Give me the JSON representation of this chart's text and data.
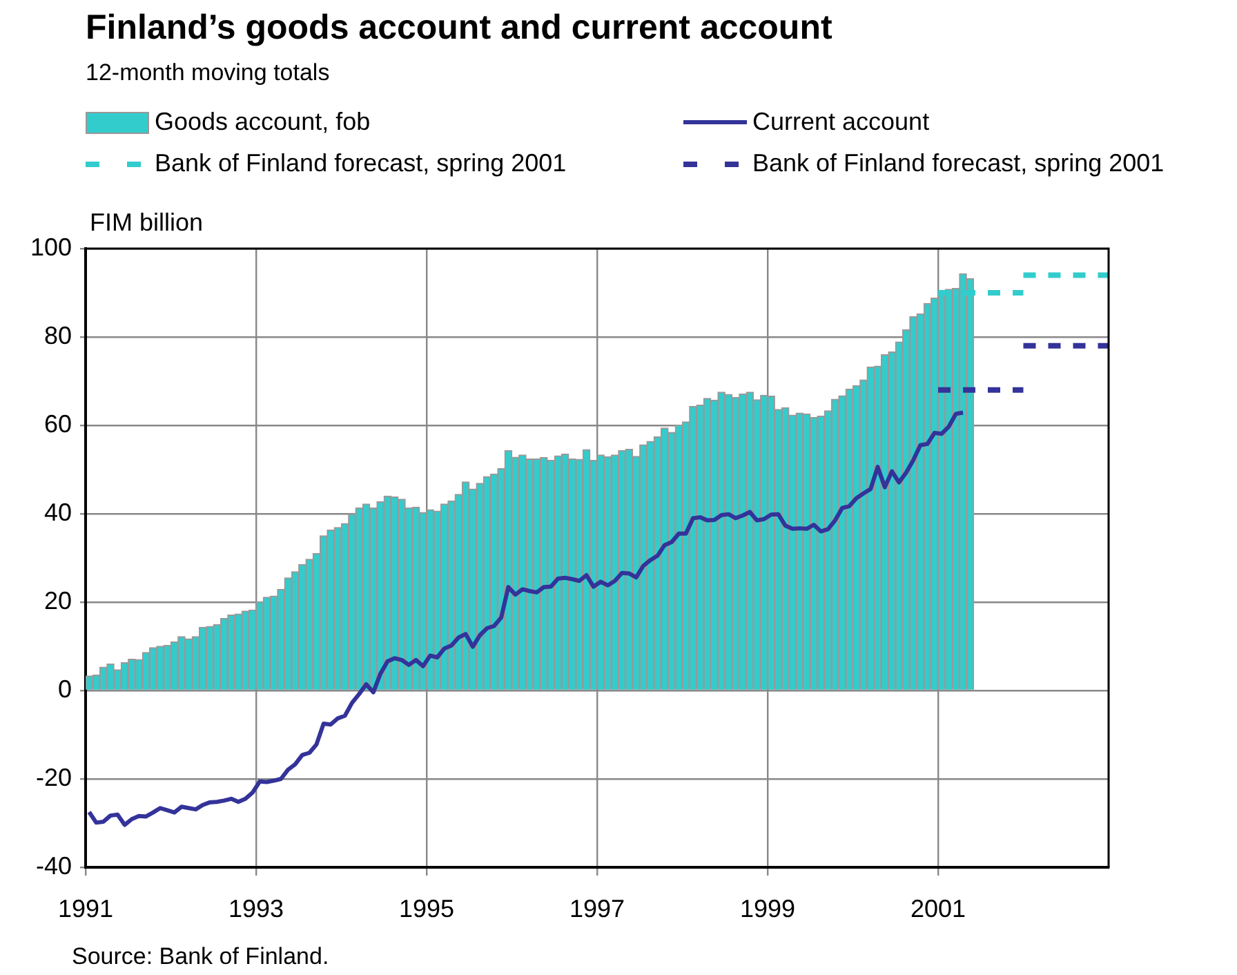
{
  "chart_data": {
    "type": "bar",
    "title": "Finland’s goods account and current account",
    "subtitle": "12-month moving totals",
    "ylabel": "FIM billion",
    "annotations": [
      "Source: Bank of Finland."
    ],
    "x": [
      "1991-01",
      "1991-02",
      "1991-03",
      "1991-04",
      "1991-05",
      "1991-06",
      "1991-07",
      "1991-08",
      "1991-09",
      "1991-10",
      "1991-11",
      "1991-12",
      "1992-01",
      "1992-02",
      "1992-03",
      "1992-04",
      "1992-05",
      "1992-06",
      "1992-07",
      "1992-08",
      "1992-09",
      "1992-10",
      "1992-11",
      "1992-12",
      "1993-01",
      "1993-02",
      "1993-03",
      "1993-04",
      "1993-05",
      "1993-06",
      "1993-07",
      "1993-08",
      "1993-09",
      "1993-10",
      "1993-11",
      "1993-12",
      "1994-01",
      "1994-02",
      "1994-03",
      "1994-04",
      "1994-05",
      "1994-06",
      "1994-07",
      "1994-08",
      "1994-09",
      "1994-10",
      "1994-11",
      "1994-12",
      "1995-01",
      "1995-02",
      "1995-03",
      "1995-04",
      "1995-05",
      "1995-06",
      "1995-07",
      "1995-08",
      "1995-09",
      "1995-10",
      "1995-11",
      "1995-12",
      "1996-01",
      "1996-02",
      "1996-03",
      "1996-04",
      "1996-05",
      "1996-06",
      "1996-07",
      "1996-08",
      "1996-09",
      "1996-10",
      "1996-11",
      "1996-12",
      "1997-01",
      "1997-02",
      "1997-03",
      "1997-04",
      "1997-05",
      "1997-06",
      "1997-07",
      "1997-08",
      "1997-09",
      "1997-10",
      "1997-11",
      "1997-12",
      "1998-01",
      "1998-02",
      "1998-03",
      "1998-04",
      "1998-05",
      "1998-06",
      "1998-07",
      "1998-08",
      "1998-09",
      "1998-10",
      "1998-11",
      "1998-12",
      "1999-01",
      "1999-02",
      "1999-03",
      "1999-04",
      "1999-05",
      "1999-06",
      "1999-07",
      "1999-08",
      "1999-09",
      "1999-10",
      "1999-11",
      "1999-12",
      "2000-01",
      "2000-02",
      "2000-03",
      "2000-04",
      "2000-05",
      "2000-06",
      "2000-07",
      "2000-08",
      "2000-09",
      "2000-10",
      "2000-11",
      "2000-12",
      "2001-01",
      "2001-02",
      "2001-03",
      "2001-04",
      "2001-05"
    ],
    "series": [
      {
        "name": "Goods account, fob",
        "color": "#33cccc",
        "values": [
          3.3,
          3.5,
          5.3,
          6.0,
          4.7,
          6.3,
          7.1,
          7.0,
          8.6,
          9.7,
          10.0,
          10.2,
          11.0,
          12.2,
          11.7,
          12.2,
          14.3,
          14.5,
          14.9,
          16.3,
          17.1,
          17.3,
          18.0,
          18.2,
          20.1,
          21.1,
          21.4,
          22.9,
          25.5,
          26.9,
          28.5,
          29.7,
          31.0,
          35.0,
          36.3,
          36.9,
          37.8,
          39.9,
          41.3,
          42.2,
          41.3,
          42.7,
          44.0,
          43.8,
          43.3,
          41.3,
          41.5,
          40.3,
          40.9,
          40.6,
          42.2,
          42.9,
          44.4,
          47.2,
          45.6,
          46.9,
          48.4,
          49.0,
          50.2,
          54.3,
          52.8,
          53.3,
          52.4,
          52.4,
          52.7,
          52.1,
          53.1,
          53.5,
          52.4,
          52.3,
          54.5,
          52.1,
          53.3,
          52.9,
          53.3,
          54.3,
          54.6,
          53.0,
          55.6,
          56.4,
          57.4,
          59.4,
          58.4,
          60.1,
          60.8,
          64.3,
          64.6,
          66.1,
          65.7,
          67.5,
          67.0,
          66.3,
          67.1,
          67.5,
          65.8,
          66.8,
          66.6,
          63.6,
          64.0,
          62.3,
          62.8,
          62.6,
          61.8,
          62.1,
          63.3,
          65.9,
          66.7,
          68.2,
          69.0,
          70.3,
          73.2,
          73.4,
          76.0,
          76.6,
          78.9,
          81.6,
          84.6,
          85.2,
          87.6,
          88.8,
          90.1,
          90.8,
          91.0,
          94.3,
          93.2
        ]
      },
      {
        "name": "Current account",
        "type": "line",
        "color": "#333399",
        "line_style": "solid",
        "values": [
          -27.5,
          -29.9,
          -29.7,
          -28.3,
          -28.1,
          -30.4,
          -29.1,
          -28.4,
          -28.5,
          -27.6,
          -26.6,
          -27.1,
          -27.6,
          -26.3,
          -26.6,
          -26.9,
          -25.9,
          -25.3,
          -25.2,
          -24.9,
          -24.5,
          -25.2,
          -24.5,
          -23.1,
          -20.6,
          -20.7,
          -20.4,
          -20.0,
          -17.9,
          -16.7,
          -14.6,
          -14.1,
          -12.2,
          -7.5,
          -7.7,
          -6.3,
          -5.7,
          -2.8,
          -0.8,
          1.4,
          -0.4,
          3.8,
          6.6,
          7.3,
          6.9,
          5.8,
          6.9,
          5.5,
          7.9,
          7.5,
          9.5,
          10.2,
          12.0,
          12.8,
          9.9,
          12.5,
          14.1,
          14.6,
          16.5,
          23.4,
          21.7,
          22.9,
          22.5,
          22.2,
          23.4,
          23.5,
          25.3,
          25.5,
          25.2,
          24.8,
          26.1,
          23.5,
          24.6,
          23.8,
          24.8,
          26.6,
          26.5,
          25.6,
          28.2,
          29.5,
          30.5,
          32.9,
          33.6,
          35.5,
          35.5,
          39.0,
          39.2,
          38.5,
          38.6,
          39.7,
          39.9,
          39.0,
          39.6,
          40.4,
          38.5,
          38.8,
          39.8,
          39.9,
          37.3,
          36.6,
          36.7,
          36.6,
          37.5,
          36.0,
          36.5,
          38.5,
          41.3,
          41.7,
          43.5,
          44.6,
          45.6,
          50.6,
          46.0,
          49.6,
          47.1,
          49.3,
          52.1,
          55.5,
          55.8,
          58.3,
          58.1,
          59.7,
          62.6,
          62.9,
          null
        ]
      },
      {
        "name": "Bank of Finland forecast, spring 2001",
        "type": "line",
        "color": "#33cccc",
        "line_style": "dashed",
        "x": [
          "2001-01-01",
          "2002-01-01",
          "2002-01-01",
          "2003-01-01"
        ],
        "values": [
          90,
          90,
          94,
          94
        ]
      },
      {
        "name": "Bank of Finland forecast, spring 2001",
        "type": "line",
        "color": "#333399",
        "line_style": "dashed",
        "x": [
          "2001-01-01",
          "2002-01-01",
          "2002-01-01",
          "2003-01-01"
        ],
        "values": [
          68,
          68,
          78,
          78
        ]
      }
    ],
    "xlim": [
      "1991-01-01",
      "2003-01-01"
    ],
    "xticks": [
      "1991",
      "1993",
      "1995",
      "1997",
      "1999",
      "2001"
    ],
    "ylim": [
      -40,
      100
    ],
    "yticks": [
      -40,
      -20,
      0,
      20,
      40,
      60,
      80,
      100
    ],
    "grid": true,
    "legend": "top",
    "marker": "none"
  }
}
